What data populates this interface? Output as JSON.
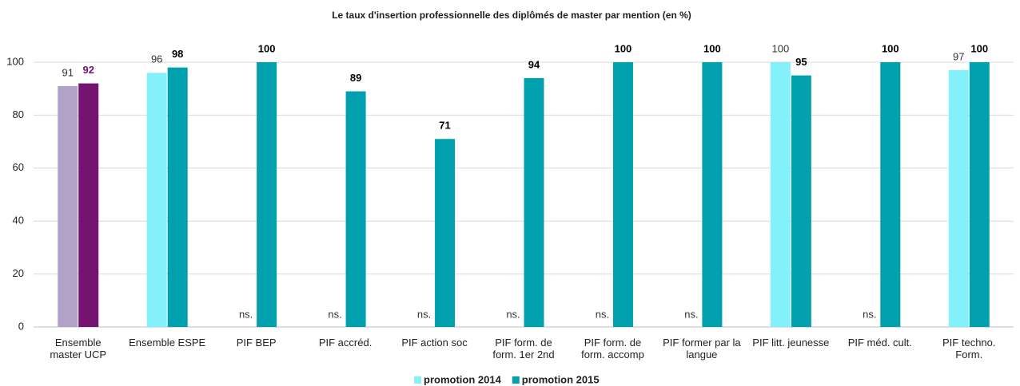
{
  "chart_data": {
    "type": "bar",
    "title": "Le taux d'insertion professionnelle  des diplômés  de master par mention  (en %)",
    "categories": [
      "Ensemble master UCP",
      "Ensemble ESPE",
      "PIF BEP",
      "PIF accréd.",
      "PIF action soc",
      "PIF form. de form. 1er 2nd",
      "PIF form. de form. accomp",
      "PIF former par la langue",
      "PIF litt. jeunesse",
      "PIF méd. cult.",
      "PIF techno. Form."
    ],
    "series": [
      {
        "name": "promotion 2014",
        "color": "#84f0fa",
        "colors": [
          "#b3a2c7",
          "#84f0fa",
          "#84f0fa",
          "#84f0fa",
          "#84f0fa",
          "#84f0fa",
          "#84f0fa",
          "#84f0fa",
          "#84f0fa",
          "#84f0fa",
          "#84f0fa"
        ],
        "values": [
          91,
          96,
          null,
          null,
          null,
          null,
          null,
          null,
          100,
          null,
          97
        ],
        "value_labels": [
          "91",
          "96",
          "ns.",
          "ns.",
          "ns.",
          "ns.",
          "ns.",
          "ns.",
          "100",
          "ns.",
          "97"
        ]
      },
      {
        "name": "promotion 2015",
        "color": "#00a0ae",
        "colors": [
          "#741470",
          "#00a0ae",
          "#00a0ae",
          "#00a0ae",
          "#00a0ae",
          "#00a0ae",
          "#00a0ae",
          "#00a0ae",
          "#00a0ae",
          "#00a0ae",
          "#00a0ae"
        ],
        "values": [
          92,
          98,
          100,
          89,
          71,
          94,
          100,
          100,
          95,
          100,
          100
        ]
      }
    ],
    "ylim": [
      0,
      100
    ],
    "yticks": [
      0,
      20,
      40,
      60,
      80,
      100
    ],
    "grid": true,
    "legend": "bottom"
  }
}
